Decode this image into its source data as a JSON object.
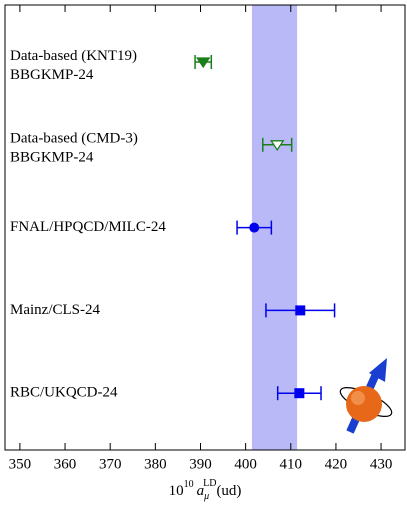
{
  "chart_data": {
    "type": "errorbar",
    "categories": [
      [
        "Data-based (KNT19)",
        "BBGKMP-24"
      ],
      [
        "Data-based (CMD-3)",
        "BBGKMP-24"
      ],
      [
        "FNAL/HPQCD/MILC-24"
      ],
      [
        "Mainz/CLS-24"
      ],
      [
        "RBC/UKQCD-24"
      ]
    ],
    "values": [
      390.6,
      407.0,
      401.9,
      412.1,
      411.9
    ],
    "errors": [
      1.8,
      3.2,
      3.8,
      7.6,
      4.8
    ],
    "colors": [
      "#1a7f1a",
      "#1a7f1a",
      "#0000ee",
      "#0000ee",
      "#0000ee"
    ],
    "markers": [
      "triangle-down",
      "triangle-down-open",
      "circle",
      "square",
      "square"
    ],
    "band": [
      401.4,
      411.4
    ],
    "band_color": "#b9b9f7",
    "xlim": [
      346.7,
      435.3
    ],
    "xticks": [
      350,
      360,
      370,
      380,
      390,
      400,
      410,
      420,
      430
    ],
    "xlabel": {
      "prefix": "10",
      "exp": "10",
      "symbol": "a",
      "sub": "μ",
      "sup": "LD",
      "suffix": "(ud)"
    }
  }
}
